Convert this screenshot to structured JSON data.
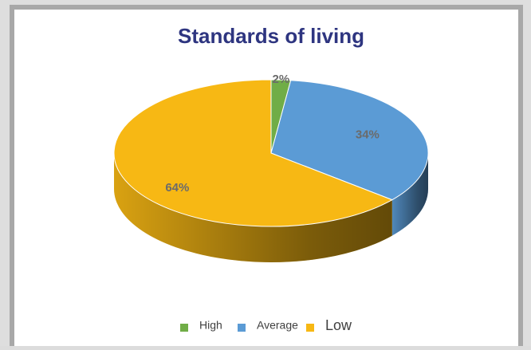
{
  "chart_data": {
    "type": "pie",
    "title": "Standards of living",
    "categories": [
      "High",
      "Average",
      "Low"
    ],
    "values": [
      2,
      34,
      64
    ],
    "value_labels": [
      "2%",
      "34%",
      "64%"
    ],
    "colors": [
      "#70ad47",
      "#5b9bd5",
      "#f7b814"
    ],
    "legend": "bottom"
  }
}
